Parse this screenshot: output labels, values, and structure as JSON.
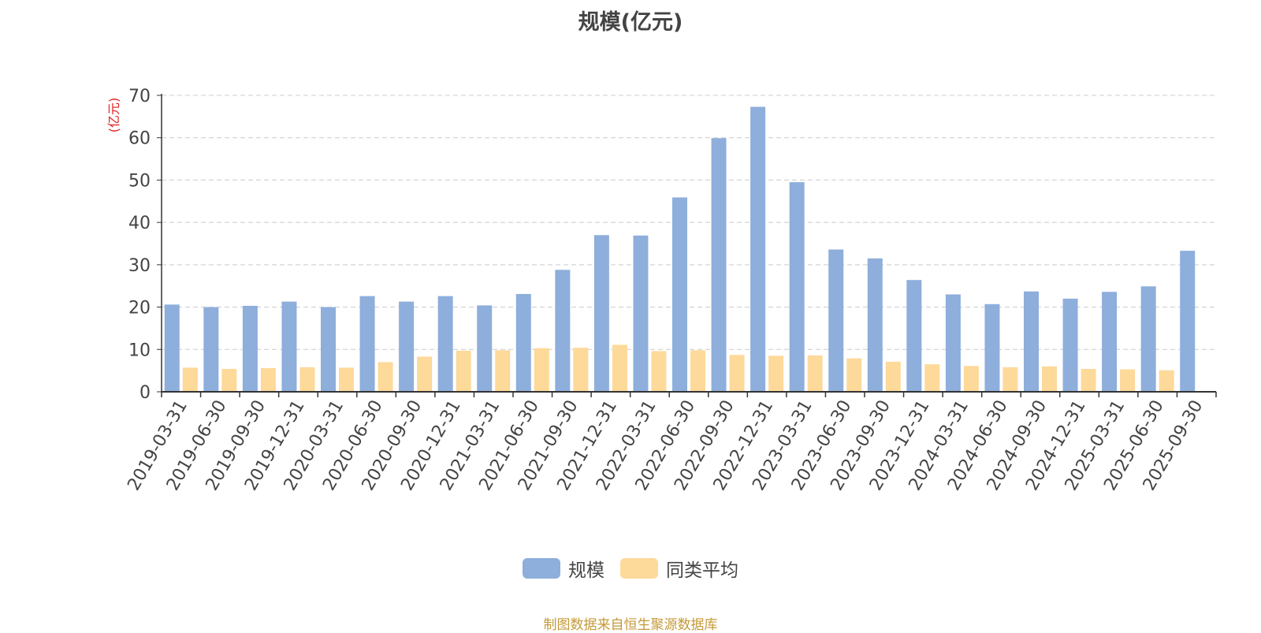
{
  "chart_data": {
    "type": "bar",
    "title": "规模(亿元)",
    "ylabel": "(亿元)",
    "ylim": [
      0,
      70
    ],
    "yticks": [
      0,
      10,
      20,
      30,
      40,
      50,
      60,
      70
    ],
    "grid": true,
    "legend_position": "bottom-center",
    "categories": [
      "2019-03-31",
      "2019-06-30",
      "2019-09-30",
      "2019-12-31",
      "2020-03-31",
      "2020-06-30",
      "2020-09-30",
      "2020-12-31",
      "2021-03-31",
      "2021-06-30",
      "2021-09-30",
      "2021-12-31",
      "2022-03-31",
      "2022-06-30",
      "2022-09-30",
      "2022-12-31",
      "2023-03-31",
      "2023-06-30",
      "2023-09-30",
      "2023-12-31",
      "2024-03-31",
      "2024-06-30",
      "2024-09-30",
      "2024-12-31",
      "2025-03-31",
      "2025-06-30",
      "2025-09-30"
    ],
    "series": [
      {
        "name": "规模",
        "color": "#8eaedb",
        "values": [
          20.6,
          20.0,
          20.3,
          21.3,
          20.0,
          22.6,
          21.3,
          22.6,
          20.4,
          23.1,
          28.8,
          37.0,
          36.9,
          45.9,
          59.9,
          67.3,
          49.5,
          33.6,
          31.5,
          26.4,
          23.0,
          20.7,
          23.7,
          22.0,
          23.6,
          24.9,
          33.3
        ]
      },
      {
        "name": "同类平均",
        "color": "#fdd99a",
        "values": [
          5.7,
          5.4,
          5.6,
          5.8,
          5.7,
          7.0,
          8.3,
          9.7,
          9.8,
          10.3,
          10.4,
          11.1,
          9.6,
          9.8,
          8.7,
          8.5,
          8.6,
          7.9,
          7.1,
          6.5,
          6.1,
          5.8,
          6.0,
          5.4,
          5.3,
          5.1,
          null
        ]
      }
    ]
  },
  "source_note": "制图数据来自恒生聚源数据库"
}
